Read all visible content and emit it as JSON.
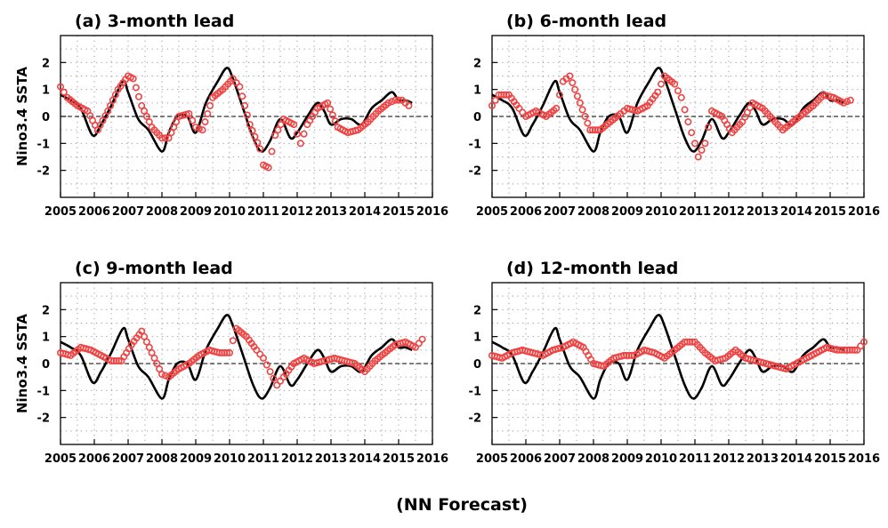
{
  "figure": {
    "footer": "(NN Forecast)",
    "colors": {
      "observed": "#000000",
      "forecast": "#ee4444",
      "grid": "#999999"
    }
  },
  "chart_data": [
    {
      "type": "line",
      "title": "(a) 3-month lead",
      "ylabel": "Nino3.4 SSTA",
      "xlim": [
        2005,
        2016
      ],
      "ylim": [
        -3,
        3
      ],
      "xticks": [
        "2005",
        "2006",
        "2007",
        "2008",
        "2009",
        "2010",
        "2011",
        "2012",
        "2013",
        "2014",
        "2015",
        "2016"
      ],
      "yticks": [
        "2",
        "1",
        "0",
        "-1",
        "-2"
      ],
      "grid": true,
      "series": [
        {
          "style": "solid black line",
          "x": [
            2005,
            2005.3,
            2005.6,
            2005.95,
            2006.2,
            2006.5,
            2006.85,
            2007.0,
            2007.3,
            2007.6,
            2008.0,
            2008.2,
            2008.45,
            2008.75,
            2009.0,
            2009.3,
            2009.65,
            2009.92,
            2010.1,
            2010.4,
            2010.7,
            2010.95,
            2011.2,
            2011.5,
            2011.8,
            2012.0,
            2012.3,
            2012.6,
            2012.8,
            2013.0,
            2013.3,
            2013.6,
            2013.9,
            2014.2,
            2014.5,
            2014.8,
            2015.0,
            2015.2,
            2015.4
          ],
          "y": [
            0.8,
            0.6,
            0.3,
            -0.7,
            -0.3,
            0.4,
            1.3,
            0.9,
            -0.1,
            -0.5,
            -1.3,
            -0.6,
            0.0,
            0.0,
            -0.6,
            0.5,
            1.3,
            1.8,
            1.4,
            0.3,
            -0.8,
            -1.3,
            -0.9,
            -0.1,
            -0.8,
            -0.6,
            0.0,
            0.5,
            0.2,
            -0.3,
            -0.1,
            -0.1,
            -0.3,
            0.3,
            0.6,
            0.9,
            0.6,
            0.6,
            0.5
          ]
        },
        {
          "style": "red circles",
          "x": [
            2005,
            2005.2,
            2005.5,
            2005.8,
            2006.1,
            2006.4,
            2006.7,
            2007.0,
            2007.15,
            2007.4,
            2007.7,
            2008.0,
            2008.2,
            2008.5,
            2008.8,
            2009.0,
            2009.2,
            2009.5,
            2009.8,
            2010.1,
            2010.3,
            2010.6,
            2010.9,
            2011.0,
            2011.15,
            2011.35,
            2011.6,
            2011.9,
            2012.1,
            2012.3,
            2012.6,
            2012.9,
            2013.2,
            2013.5,
            2013.8,
            2014.1,
            2014.4,
            2014.7,
            2014.9,
            2015.1,
            2015.3
          ],
          "y": [
            1.1,
            0.7,
            0.4,
            0.2,
            -0.5,
            0.2,
            1.0,
            1.5,
            1.4,
            0.4,
            -0.4,
            -0.8,
            -0.8,
            0.0,
            0.1,
            -0.4,
            -0.5,
            0.7,
            1.0,
            1.4,
            1.1,
            -0.3,
            -1.2,
            -1.8,
            -1.9,
            -0.7,
            -0.1,
            -0.3,
            -1.0,
            -0.3,
            0.3,
            0.5,
            -0.4,
            -0.6,
            -0.5,
            -0.2,
            0.2,
            0.5,
            0.6,
            0.6,
            0.4
          ]
        }
      ]
    },
    {
      "type": "line",
      "title": "(b) 6-month lead",
      "ylabel": "",
      "xlim": [
        2005,
        2016
      ],
      "ylim": [
        -3,
        3
      ],
      "xticks": [
        "2005",
        "2006",
        "2007",
        "2008",
        "2009",
        "2010",
        "2011",
        "2012",
        "2013",
        "2014",
        "2015",
        "2016"
      ],
      "yticks": [
        "2",
        "1",
        "0",
        "-1",
        "-2"
      ],
      "grid": true,
      "series": [
        {
          "style": "solid black line",
          "x": [
            2005,
            2005.3,
            2005.6,
            2005.95,
            2006.2,
            2006.5,
            2006.85,
            2007.0,
            2007.3,
            2007.6,
            2008.0,
            2008.2,
            2008.45,
            2008.75,
            2009.0,
            2009.3,
            2009.65,
            2009.92,
            2010.1,
            2010.4,
            2010.7,
            2010.95,
            2011.2,
            2011.5,
            2011.8,
            2012.0,
            2012.3,
            2012.6,
            2012.8,
            2013.0,
            2013.3,
            2013.6,
            2013.9,
            2014.2,
            2014.5,
            2014.8,
            2015.0,
            2015.2,
            2015.4
          ],
          "y": [
            0.8,
            0.6,
            0.3,
            -0.7,
            -0.3,
            0.4,
            1.3,
            0.9,
            -0.1,
            -0.5,
            -1.3,
            -0.6,
            0.0,
            0.0,
            -0.6,
            0.5,
            1.3,
            1.8,
            1.4,
            0.3,
            -0.8,
            -1.3,
            -0.9,
            -0.1,
            -0.8,
            -0.6,
            0.0,
            0.5,
            0.2,
            -0.3,
            -0.1,
            -0.1,
            -0.3,
            0.3,
            0.6,
            0.9,
            0.6,
            0.6,
            0.5
          ]
        },
        {
          "style": "red circles",
          "x": [
            2005,
            2005.2,
            2005.5,
            2005.8,
            2006.0,
            2006.3,
            2006.6,
            2006.9,
            2007.1,
            2007.3,
            2007.6,
            2007.9,
            2008.2,
            2008.5,
            2008.8,
            2009.0,
            2009.3,
            2009.6,
            2009.9,
            2010.1,
            2010.4,
            2010.6,
            2010.8,
            2011.0,
            2011.1,
            2011.3,
            2011.5,
            2011.8,
            2012.1,
            2012.4,
            2012.7,
            2013.0,
            2013.3,
            2013.6,
            2013.9,
            2014.2,
            2014.5,
            2014.8,
            2015.1,
            2015.4,
            2015.6
          ],
          "y": [
            0.4,
            0.8,
            0.8,
            0.3,
            0.0,
            0.2,
            0.0,
            0.3,
            1.3,
            1.5,
            0.5,
            -0.5,
            -0.5,
            -0.2,
            0.1,
            0.3,
            0.2,
            0.4,
            0.9,
            1.5,
            1.2,
            0.7,
            -0.2,
            -1.0,
            -1.5,
            -1.0,
            0.2,
            0.0,
            -0.6,
            -0.2,
            0.5,
            0.3,
            -0.1,
            -0.5,
            -0.2,
            0.1,
            0.4,
            0.8,
            0.7,
            0.5,
            0.6
          ]
        }
      ]
    },
    {
      "type": "line",
      "title": "(c) 9-month lead",
      "ylabel": "Nino3.4 SSTA",
      "xlim": [
        2005,
        2016
      ],
      "ylim": [
        -3,
        3
      ],
      "xticks": [
        "2005",
        "2006",
        "2007",
        "2008",
        "2009",
        "2010",
        "2011",
        "2012",
        "2013",
        "2014",
        "2015",
        "2016"
      ],
      "yticks": [
        "2",
        "1",
        "0",
        "-1",
        "-2"
      ],
      "grid": true,
      "series": [
        {
          "style": "solid black line",
          "x": [
            2005,
            2005.3,
            2005.6,
            2005.95,
            2006.2,
            2006.5,
            2006.85,
            2007.0,
            2007.3,
            2007.6,
            2008.0,
            2008.2,
            2008.45,
            2008.75,
            2009.0,
            2009.3,
            2009.65,
            2009.92,
            2010.1,
            2010.4,
            2010.7,
            2010.95,
            2011.2,
            2011.5,
            2011.8,
            2012.0,
            2012.3,
            2012.6,
            2012.8,
            2013.0,
            2013.3,
            2013.6,
            2013.9,
            2014.2,
            2014.5,
            2014.8,
            2015.0,
            2015.2,
            2015.4
          ],
          "y": [
            0.8,
            0.6,
            0.3,
            -0.7,
            -0.3,
            0.4,
            1.3,
            0.9,
            -0.1,
            -0.5,
            -1.3,
            -0.6,
            0.0,
            0.0,
            -0.6,
            0.5,
            1.3,
            1.8,
            1.4,
            0.3,
            -0.8,
            -1.3,
            -0.9,
            -0.1,
            -0.8,
            -0.6,
            0.0,
            0.5,
            0.2,
            -0.3,
            -0.1,
            -0.1,
            -0.3,
            0.3,
            0.6,
            0.9,
            0.6,
            0.6,
            0.5
          ]
        },
        {
          "style": "red circles",
          "x": [
            2005,
            2005.3,
            2005.6,
            2005.9,
            2006.2,
            2006.5,
            2006.8,
            2007.1,
            2007.4,
            2007.7,
            2008.0,
            2008.2,
            2008.5,
            2008.8,
            2009.1,
            2009.4,
            2009.7,
            2010.0,
            2010.2,
            2010.5,
            2010.8,
            2011.0,
            2011.2,
            2011.4,
            2011.6,
            2011.9,
            2012.2,
            2012.5,
            2012.8,
            2013.1,
            2013.4,
            2013.7,
            2014.0,
            2014.3,
            2014.6,
            2014.9,
            2015.2,
            2015.5,
            2015.7
          ],
          "y": [
            0.4,
            0.3,
            0.6,
            0.5,
            0.3,
            0.1,
            0.1,
            0.7,
            1.2,
            0.4,
            -0.4,
            -0.5,
            -0.2,
            0.0,
            0.3,
            0.5,
            0.4,
            0.4,
            1.3,
            1.0,
            0.5,
            0.2,
            -0.3,
            -0.8,
            -0.5,
            0.0,
            0.2,
            0.0,
            0.1,
            0.2,
            0.1,
            0.0,
            -0.3,
            0.1,
            0.4,
            0.7,
            0.8,
            0.6,
            0.9
          ]
        }
      ]
    },
    {
      "type": "line",
      "title": "(d) 12-month lead",
      "ylabel": "",
      "xlim": [
        2005,
        2016
      ],
      "ylim": [
        -3,
        3
      ],
      "xticks": [
        "2005",
        "2006",
        "2007",
        "2008",
        "2009",
        "2010",
        "2011",
        "2012",
        "2013",
        "2014",
        "2015",
        "2016"
      ],
      "yticks": [
        "2",
        "1",
        "0",
        "-1",
        "-2"
      ],
      "grid": true,
      "series": [
        {
          "style": "solid black line",
          "x": [
            2005,
            2005.3,
            2005.6,
            2005.95,
            2006.2,
            2006.5,
            2006.85,
            2007.0,
            2007.3,
            2007.6,
            2008.0,
            2008.2,
            2008.45,
            2008.75,
            2009.0,
            2009.3,
            2009.65,
            2009.92,
            2010.1,
            2010.4,
            2010.7,
            2010.95,
            2011.2,
            2011.5,
            2011.8,
            2012.0,
            2012.3,
            2012.6,
            2012.8,
            2013.0,
            2013.3,
            2013.6,
            2013.9,
            2014.2,
            2014.5,
            2014.8,
            2015.0,
            2015.2,
            2015.4
          ],
          "y": [
            0.8,
            0.6,
            0.3,
            -0.7,
            -0.3,
            0.4,
            1.3,
            0.9,
            -0.1,
            -0.5,
            -1.3,
            -0.6,
            0.0,
            0.0,
            -0.6,
            0.5,
            1.3,
            1.8,
            1.4,
            0.3,
            -0.8,
            -1.3,
            -0.9,
            -0.1,
            -0.8,
            -0.6,
            0.0,
            0.5,
            0.2,
            -0.3,
            -0.1,
            -0.1,
            -0.3,
            0.3,
            0.6,
            0.9,
            0.6,
            0.6,
            0.5
          ]
        },
        {
          "style": "red circles",
          "x": [
            2005,
            2005.3,
            2005.6,
            2005.9,
            2006.2,
            2006.5,
            2006.8,
            2007.1,
            2007.4,
            2007.7,
            2008.0,
            2008.3,
            2008.6,
            2008.9,
            2009.2,
            2009.5,
            2009.8,
            2010.1,
            2010.4,
            2010.7,
            2011.0,
            2011.3,
            2011.6,
            2011.9,
            2012.2,
            2012.5,
            2012.8,
            2013.1,
            2013.4,
            2013.7,
            2014.0,
            2014.3,
            2014.6,
            2014.9,
            2015.2,
            2015.5,
            2015.8,
            2016.0
          ],
          "y": [
            0.3,
            0.2,
            0.4,
            0.5,
            0.4,
            0.3,
            0.5,
            0.6,
            0.8,
            0.6,
            0.0,
            -0.1,
            0.2,
            0.3,
            0.3,
            0.5,
            0.4,
            0.2,
            0.5,
            0.8,
            0.8,
            0.4,
            0.1,
            0.2,
            0.5,
            0.2,
            0.1,
            0.0,
            -0.1,
            -0.2,
            0.0,
            0.2,
            0.4,
            0.6,
            0.5,
            0.5,
            0.5,
            0.8
          ]
        }
      ]
    }
  ]
}
